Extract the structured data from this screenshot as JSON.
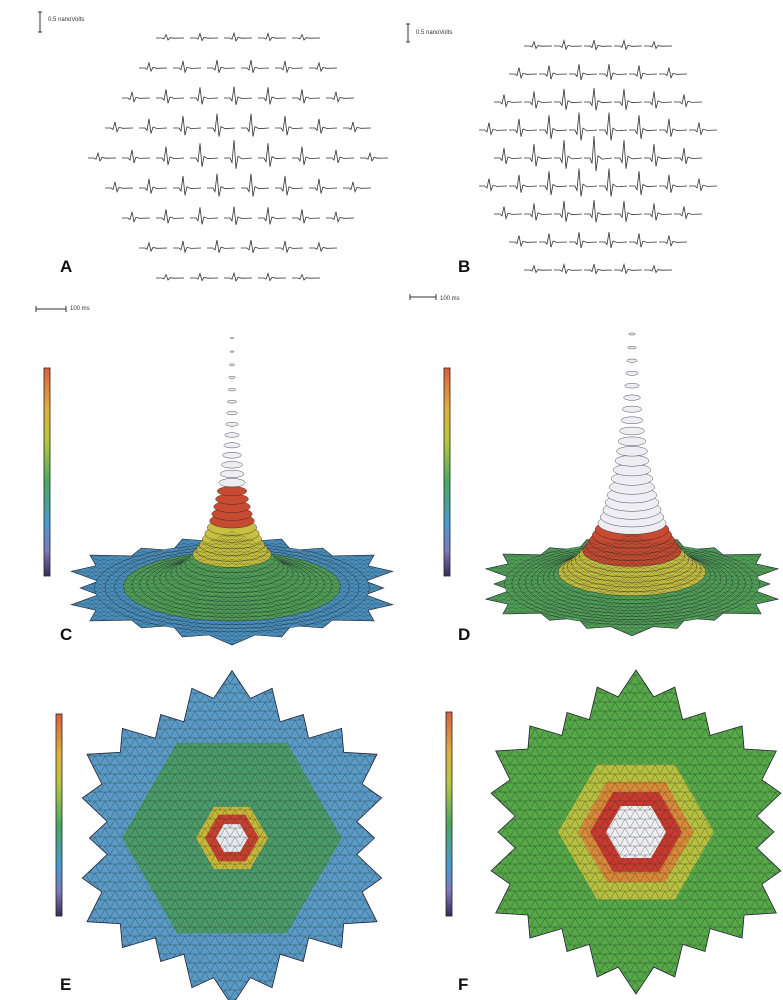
{
  "panels": [
    {
      "label": "A",
      "scale_amplitude": "0.5 nanoVolts",
      "scale_time": "100 ms"
    },
    {
      "label": "B",
      "scale_amplitude": "0.5 nanoVolts",
      "scale_time": "100 ms"
    },
    {
      "label": "C"
    },
    {
      "label": "D"
    },
    {
      "label": "E"
    },
    {
      "label": "F"
    }
  ]
}
